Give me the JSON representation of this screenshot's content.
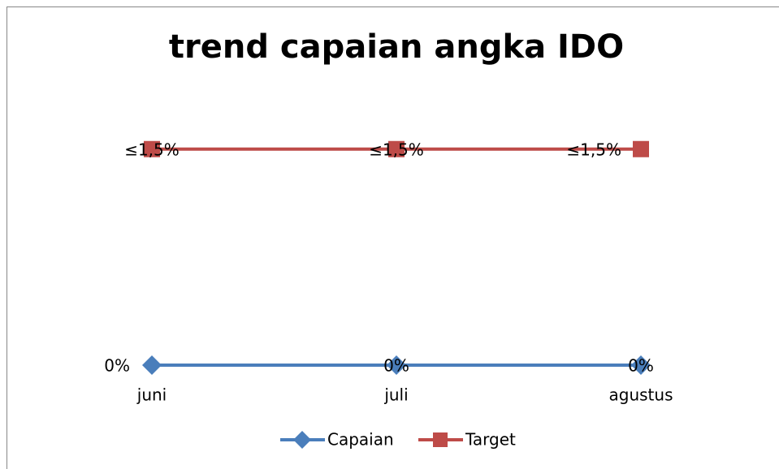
{
  "chart_data": {
    "type": "line",
    "title": "trend capaian angka IDO",
    "categories": [
      "juni",
      "juli",
      "agustus"
    ],
    "ylim": [
      0,
      2
    ],
    "legend": "bottom",
    "series": [
      {
        "name": "Capaian",
        "color": "#4a7ebb",
        "marker": "diamond",
        "values": [
          0,
          0,
          0
        ],
        "value_labels": [
          "0%",
          "0%",
          "0%"
        ]
      },
      {
        "name": "Target",
        "color": "#be4b48",
        "marker": "square",
        "values": [
          1.5,
          1.5,
          1.5
        ],
        "value_labels": [
          "≤1,5%",
          "≤1,5%",
          "≤1,5%"
        ]
      }
    ]
  }
}
